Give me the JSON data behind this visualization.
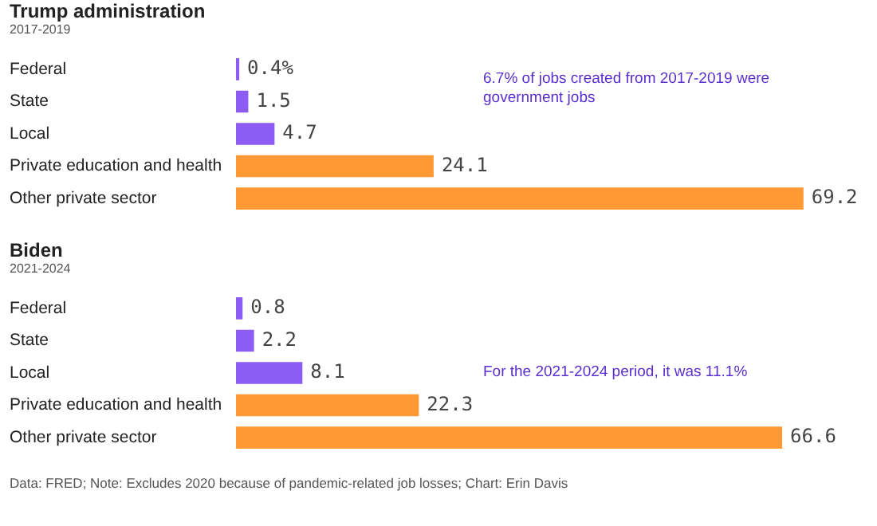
{
  "chart_data": [
    {
      "type": "bar",
      "orientation": "horizontal",
      "title": "Trump administration",
      "subtitle": "2017-2019",
      "categories": [
        "Federal",
        "State",
        "Local",
        "Private education and health",
        "Other private sector"
      ],
      "values": [
        0.4,
        1.5,
        4.7,
        24.1,
        69.2
      ],
      "value_labels": [
        "0.4%",
        "1.5",
        "4.7",
        "24.1",
        "69.2"
      ],
      "colors": [
        "#8c5cf5",
        "#8c5cf5",
        "#8c5cf5",
        "#ff9933",
        "#ff9933"
      ],
      "tick_labels": "y",
      "grid": false,
      "legend": false,
      "annotations": [
        "6.7% of jobs created from 2017-2019 were government jobs"
      ]
    },
    {
      "type": "bar",
      "orientation": "horizontal",
      "title": "Biden",
      "subtitle": "2021-2024",
      "categories": [
        "Federal",
        "State",
        "Local",
        "Private education and health",
        "Other private sector"
      ],
      "values": [
        0.8,
        2.2,
        8.1,
        22.3,
        66.6
      ],
      "data_labels": true,
      "colors": [
        "#8c5cf5",
        "#8c5cf5",
        "#8c5cf5",
        "#ff9933",
        "#ff9933"
      ],
      "tick_labels": "y",
      "grid": false,
      "legend": false,
      "annotations": [
        "For the 2021-2024 period, it was 11.1%",
        "Data: FRED; Note: Excludes 2020 because of pandemic-related job losses; Chart: Erin Davis"
      ]
    }
  ]
}
